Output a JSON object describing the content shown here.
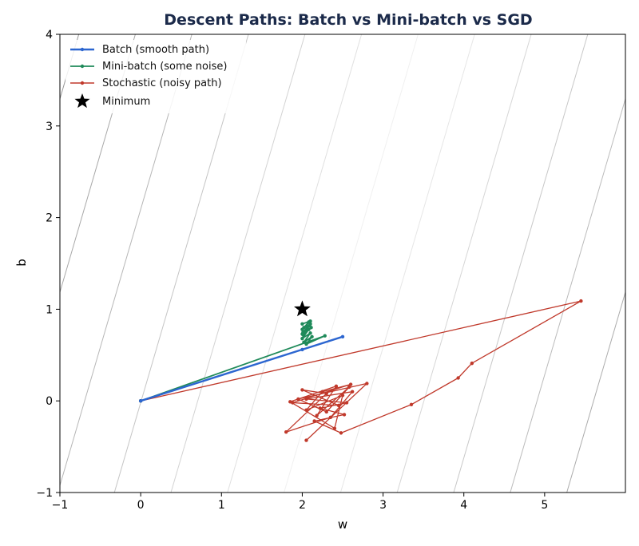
{
  "chart_data": {
    "type": "line",
    "title": "Descent Paths: Batch vs Mini-batch vs SGD",
    "xlabel": "w",
    "ylabel": "b",
    "xlim": [
      -1,
      6
    ],
    "ylim": [
      -1,
      4
    ],
    "xticks": [
      -1,
      0,
      1,
      2,
      3,
      4,
      5
    ],
    "yticks": [
      -1,
      0,
      1,
      2,
      3,
      4
    ],
    "xtick_labels": [
      "−1",
      "0",
      "1",
      "2",
      "3",
      "4",
      "5"
    ],
    "ytick_labels": [
      "−1",
      "0",
      "1",
      "2",
      "3",
      "4"
    ],
    "grid": false,
    "legend_position": "top-left",
    "background": "loss contour lines (gray)",
    "series": [
      {
        "name": "Batch (smooth path)",
        "color": "#2c66d0",
        "x": [
          0,
          2.0,
          2.5
        ],
        "y": [
          0,
          0.56,
          0.7
        ]
      },
      {
        "name": "Mini-batch (some noise)",
        "color": "#1f8a5a",
        "x": [
          0,
          2.28,
          2.05,
          2.12,
          2.02,
          2.1,
          2.0,
          2.08,
          2.01,
          2.11,
          2.0,
          2.09,
          2.01,
          2.1,
          2.0,
          2.08,
          2.02,
          2.1,
          2.0
        ],
        "y": [
          0,
          0.71,
          0.62,
          0.7,
          0.64,
          0.74,
          0.68,
          0.78,
          0.72,
          0.8,
          0.73,
          0.82,
          0.75,
          0.84,
          0.78,
          0.86,
          0.8,
          0.87,
          0.84
        ]
      },
      {
        "name": "Stochastic (noisy path)",
        "color": "#c0392b",
        "x": [
          0,
          5.45,
          4.1,
          3.93,
          3.35,
          2.48,
          2.15,
          2.52,
          2.22,
          2.55,
          2.05,
          2.62,
          2.35,
          1.8,
          2.3,
          2.0,
          2.45,
          1.88,
          2.6,
          2.25,
          2.05,
          2.5,
          2.4,
          1.85,
          2.42,
          2.18,
          2.58,
          2.3,
          1.95,
          2.8,
          2.05
        ],
        "y": [
          0,
          1.09,
          0.41,
          0.25,
          -0.04,
          -0.35,
          -0.22,
          -0.15,
          -0.08,
          -0.02,
          0.02,
          0.1,
          -0.18,
          -0.34,
          0.08,
          0.12,
          -0.05,
          -0.02,
          0.18,
          0.1,
          -0.1,
          0.06,
          -0.3,
          -0.01,
          0.16,
          -0.16,
          0.15,
          -0.12,
          0.02,
          0.19,
          -0.43
        ]
      }
    ],
    "minimum": {
      "name": "Minimum",
      "x": 2,
      "y": 1
    }
  }
}
